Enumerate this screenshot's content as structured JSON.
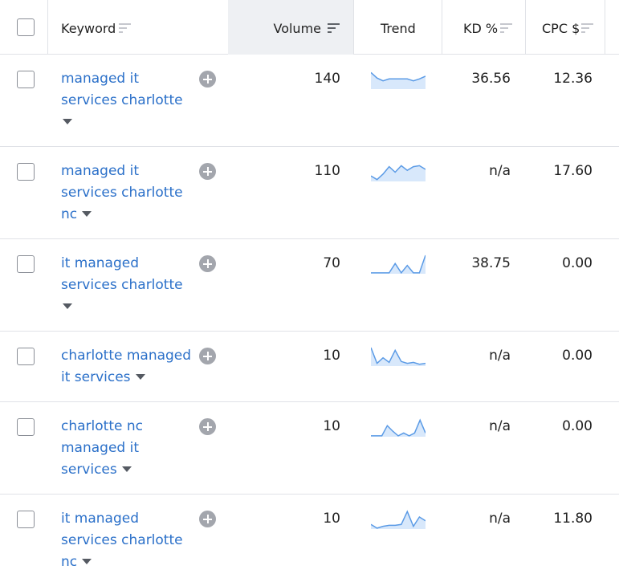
{
  "header": {
    "keyword": "Keyword",
    "volume": "Volume",
    "trend": "Trend",
    "kd": "KD %",
    "cpc": "CPC $"
  },
  "colors": {
    "link": "#2b70c9",
    "trend_line": "#5b9be6",
    "trend_fill": "#d8e8fb",
    "border": "#e0e2e7"
  },
  "rows": [
    {
      "keyword_lines": [
        "managed it",
        "services charlotte",
        ""
      ],
      "volume": "140",
      "kd": "36.56",
      "cpc": "12.36",
      "trend": [
        0.9,
        0.6,
        0.45,
        0.55,
        0.55,
        0.55,
        0.55,
        0.45,
        0.55,
        0.7
      ]
    },
    {
      "keyword_lines": [
        "managed it",
        "services charlotte",
        "nc"
      ],
      "volume": "110",
      "kd": "n/a",
      "cpc": "17.60",
      "trend": [
        0.3,
        0.1,
        0.4,
        0.8,
        0.5,
        0.85,
        0.6,
        0.8,
        0.85,
        0.65
      ]
    },
    {
      "keyword_lines": [
        "it managed",
        "services charlotte",
        ""
      ],
      "volume": "70",
      "kd": "38.75",
      "cpc": "0.00",
      "trend": [
        0.05,
        0.05,
        0.05,
        0.05,
        0.55,
        0.05,
        0.45,
        0.05,
        0.05,
        1.0
      ]
    },
    {
      "keyword_lines": [
        "charlotte managed",
        "it services"
      ],
      "volume": "10",
      "kd": "n/a",
      "cpc": "0.00",
      "trend": [
        1.0,
        0.15,
        0.45,
        0.2,
        0.85,
        0.25,
        0.15,
        0.2,
        0.1,
        0.15
      ]
    },
    {
      "keyword_lines": [
        "charlotte nc",
        "managed it",
        "services"
      ],
      "volume": "10",
      "kd": "n/a",
      "cpc": "0.00",
      "trend": [
        0.05,
        0.05,
        0.05,
        0.6,
        0.3,
        0.05,
        0.2,
        0.05,
        0.2,
        0.9,
        0.2
      ]
    },
    {
      "keyword_lines": [
        "it managed",
        "services charlotte",
        "nc"
      ],
      "volume": "10",
      "kd": "n/a",
      "cpc": "11.80",
      "trend": [
        0.25,
        0.05,
        0.15,
        0.2,
        0.2,
        0.25,
        0.95,
        0.15,
        0.65,
        0.45
      ]
    }
  ]
}
